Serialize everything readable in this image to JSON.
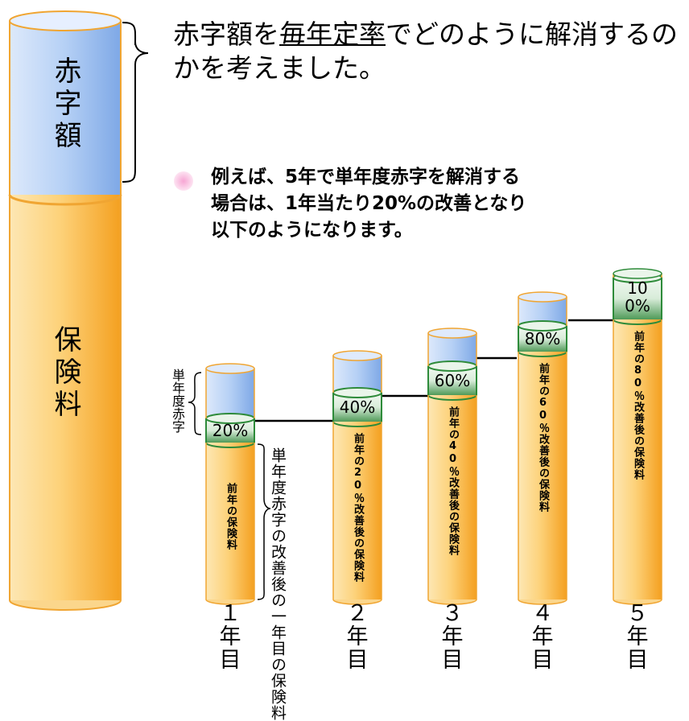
{
  "left_column": {
    "deficit_label": "赤字額",
    "premium_label": "保険料"
  },
  "heading": {
    "part1": "赤字額を",
    "underlined": "毎年定率",
    "part2": "でどのように解消するのかを考えました。"
  },
  "note": {
    "lines": [
      "例えば、5年で単年度赤字を解消する",
      "場合は、1年当たり20%の改善となり",
      "以下のようになります。"
    ]
  },
  "annotations": {
    "single_year_deficit": "単年度赤字",
    "after_first_year": "単年度赤字の改善後の一年目の保険料"
  },
  "bars": [
    {
      "year": "１年目",
      "percent": "20%",
      "inner_label": "前年の保険料",
      "improvement": 20
    },
    {
      "year": "２年目",
      "percent": "40%",
      "inner_label": "前年の20％改善後の保険料",
      "improvement": 40
    },
    {
      "year": "３年目",
      "percent": "60%",
      "inner_label": "前年の40％改善後の保険料",
      "improvement": 60
    },
    {
      "year": "４年目",
      "percent": "80%",
      "inner_label": "前年の60％改善後の保険料",
      "improvement": 80
    },
    {
      "year": "５年目",
      "percent": "100%",
      "inner_label": "前年の80％改善後の保険料",
      "improvement": 100
    }
  ],
  "colors": {
    "deficit_blue": "#a9c9f3",
    "premium_orange": "#f9b84a",
    "band_green": "#2e8b3a",
    "pink_bullet": "#f7a6d4"
  }
}
